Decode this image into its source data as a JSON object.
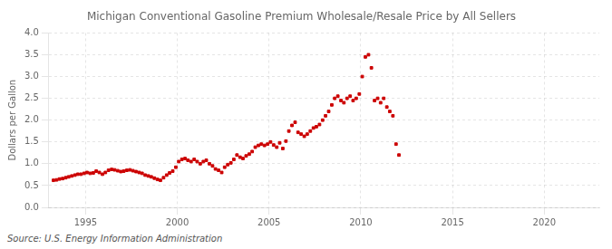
{
  "chart_data": {
    "type": "scatter",
    "title": "Michigan Conventional Gasoline Premium Wholesale/Resale Price by All Sellers",
    "ylabel": "Dollars per Gallon",
    "annotation": "Source: U.S. Energy Information Administration",
    "color": "#cc0000",
    "marker": "square",
    "grid": true,
    "xlim": [
      1993.0,
      2023.0
    ],
    "ylim": [
      0.0,
      4.0
    ],
    "xticks": [
      1995,
      2000,
      2005,
      2010,
      2015,
      2020
    ],
    "yticks": [
      {
        "value": 0.0,
        "label": "0.0"
      },
      0.5,
      {
        "value": 1.0,
        "label": "1.0"
      },
      1.5,
      {
        "value": 2.0,
        "label": "2.0"
      },
      2.5,
      {
        "value": 3.0,
        "label": "3.0"
      },
      3.5,
      {
        "value": 4.0,
        "label": "4.0"
      }
    ],
    "x": [
      1993.25,
      1993.42,
      1993.58,
      1993.75,
      1993.92,
      1994.08,
      1994.25,
      1994.42,
      1994.58,
      1994.75,
      1994.92,
      1995.08,
      1995.25,
      1995.42,
      1995.58,
      1995.75,
      1995.92,
      1996.08,
      1996.25,
      1996.42,
      1996.58,
      1996.75,
      1996.92,
      1997.08,
      1997.25,
      1997.42,
      1997.58,
      1997.75,
      1997.92,
      1998.08,
      1998.25,
      1998.42,
      1998.58,
      1998.75,
      1998.92,
      1999.08,
      1999.25,
      1999.42,
      1999.58,
      1999.75,
      1999.92,
      2000.08,
      2000.25,
      2000.42,
      2000.58,
      2000.75,
      2000.92,
      2001.08,
      2001.25,
      2001.42,
      2001.58,
      2001.75,
      2001.92,
      2002.08,
      2002.25,
      2002.42,
      2002.58,
      2002.75,
      2002.92,
      2003.08,
      2003.25,
      2003.42,
      2003.58,
      2003.75,
      2003.92,
      2004.08,
      2004.25,
      2004.42,
      2004.58,
      2004.75,
      2004.92,
      2005.08,
      2005.25,
      2005.42,
      2005.58,
      2005.75,
      2005.92,
      2006.08,
      2006.25,
      2006.42,
      2006.58,
      2006.75,
      2006.92,
      2007.08,
      2007.25,
      2007.42,
      2007.58,
      2007.75,
      2007.92,
      2008.08,
      2008.25,
      2008.42,
      2008.58,
      2008.75,
      2008.92,
      2009.08,
      2009.25,
      2009.42,
      2009.58,
      2009.75,
      2009.92,
      2010.08,
      2010.25,
      2010.42,
      2010.58,
      2010.75,
      2010.92,
      2011.08,
      2011.25,
      2011.42,
      2011.58,
      2011.75,
      2011.92,
      2012.08
    ],
    "values": [
      0.62,
      0.63,
      0.65,
      0.66,
      0.68,
      0.7,
      0.72,
      0.74,
      0.76,
      0.76,
      0.78,
      0.8,
      0.78,
      0.79,
      0.83,
      0.8,
      0.76,
      0.8,
      0.85,
      0.87,
      0.86,
      0.84,
      0.82,
      0.83,
      0.85,
      0.86,
      0.84,
      0.82,
      0.8,
      0.78,
      0.74,
      0.72,
      0.7,
      0.67,
      0.64,
      0.62,
      0.68,
      0.74,
      0.79,
      0.83,
      0.92,
      1.05,
      1.1,
      1.12,
      1.08,
      1.05,
      1.1,
      1.05,
      1.0,
      1.05,
      1.08,
      1.0,
      0.95,
      0.88,
      0.85,
      0.8,
      0.92,
      0.98,
      1.02,
      1.1,
      1.2,
      1.15,
      1.12,
      1.18,
      1.22,
      1.28,
      1.38,
      1.42,
      1.45,
      1.42,
      1.45,
      1.5,
      1.43,
      1.38,
      1.48,
      1.35,
      1.52,
      1.75,
      1.88,
      1.95,
      1.72,
      1.68,
      1.63,
      1.68,
      1.75,
      1.82,
      1.85,
      1.9,
      2.0,
      2.1,
      2.2,
      2.35,
      2.5,
      2.55,
      2.45,
      2.4,
      2.5,
      2.55,
      2.45,
      2.5,
      2.6,
      3.0,
      3.45,
      3.5,
      3.2,
      2.45,
      2.5,
      2.4,
      2.5,
      2.3,
      2.2,
      2.1,
      1.45,
      1.2
    ]
  }
}
